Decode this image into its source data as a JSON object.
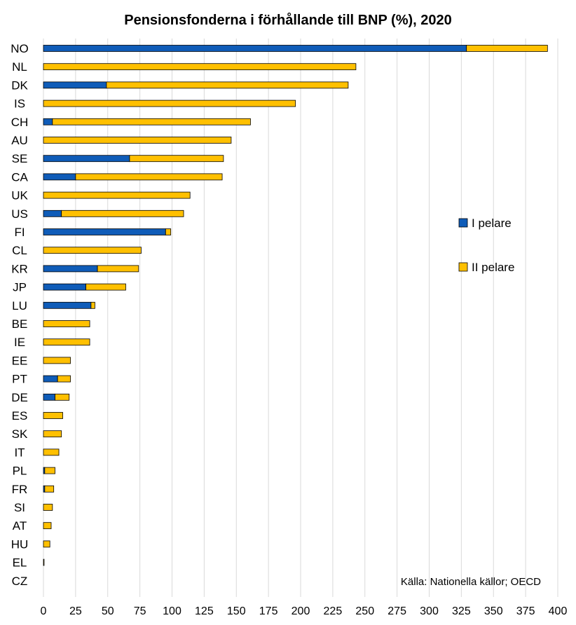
{
  "chart_data": {
    "type": "bar",
    "orientation": "horizontal",
    "stacked": true,
    "title": "Pensionsfonderna i förhållande till BNP (%), 2020",
    "xlabel": "",
    "ylabel": "",
    "xlim": [
      0,
      400
    ],
    "xticks": [
      0,
      25,
      50,
      75,
      100,
      125,
      150,
      175,
      200,
      225,
      250,
      275,
      300,
      325,
      350,
      375,
      400
    ],
    "grid": "vertical",
    "categories": [
      "NO",
      "NL",
      "DK",
      "IS",
      "CH",
      "AU",
      "SE",
      "CA",
      "UK",
      "US",
      "FI",
      "CL",
      "KR",
      "JP",
      "LU",
      "BE",
      "IE",
      "EE",
      "PT",
      "DE",
      "ES",
      "SK",
      "IT",
      "PL",
      "FR",
      "SI",
      "AT",
      "HU",
      "EL",
      "CZ"
    ],
    "series": [
      {
        "name": "I pelare",
        "color": "#0f5cb8",
        "values": [
          329,
          0,
          49,
          0,
          7,
          0,
          67,
          25,
          0,
          14,
          95,
          0,
          42,
          33,
          37,
          0,
          0,
          0,
          11,
          9,
          0,
          0,
          0,
          1,
          1,
          0,
          0,
          0,
          0,
          0
        ]
      },
      {
        "name": "II pelare",
        "color": "#ffc000",
        "values": [
          63,
          243,
          188,
          196,
          154,
          146,
          73,
          114,
          114,
          95,
          4,
          76,
          32,
          31,
          3,
          36,
          36,
          21,
          10,
          11,
          15,
          14,
          12,
          8,
          7,
          7,
          6,
          5,
          0.5,
          0
        ]
      }
    ],
    "legend_position": "right",
    "annotation": "Källa: Nationella källor; OECD"
  }
}
